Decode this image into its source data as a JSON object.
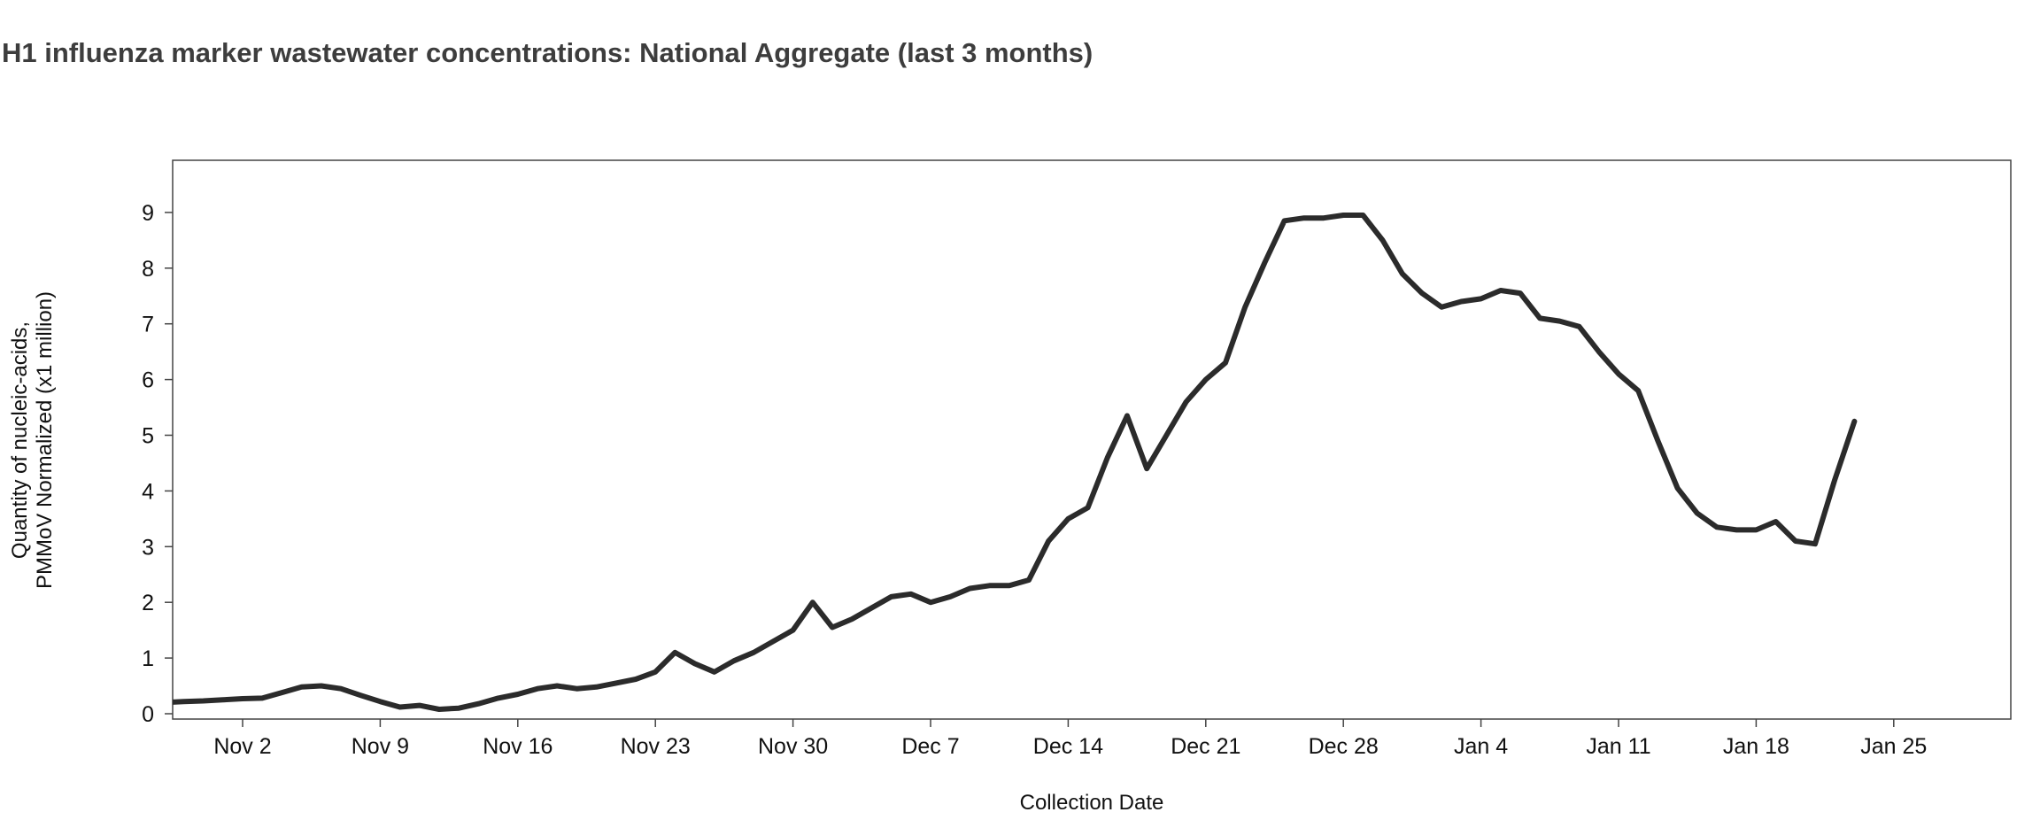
{
  "page": {
    "background": "#ffffff"
  },
  "chart_data": {
    "type": "line",
    "title": "H1 influenza marker wastewater concentrations: National Aggregate (last 3 months)",
    "xlabel": "Collection Date",
    "ylabel_lines": [
      "Quantity of nucleic-acids,",
      "PMMoV Normalized (x1 million)"
    ],
    "ylim": [
      0,
      9.95
    ],
    "y_ticks": [
      0,
      1,
      2,
      3,
      4,
      5,
      6,
      7,
      8,
      9
    ],
    "x_ticks": [
      {
        "label": "Nov 2",
        "day": 1
      },
      {
        "label": "Nov 9",
        "day": 8
      },
      {
        "label": "Nov 16",
        "day": 15
      },
      {
        "label": "Nov 23",
        "day": 22
      },
      {
        "label": "Nov 30",
        "day": 29
      },
      {
        "label": "Dec 7",
        "day": 36
      },
      {
        "label": "Dec 14",
        "day": 43
      },
      {
        "label": "Dec 21",
        "day": 50
      },
      {
        "label": "Dec 28",
        "day": 57
      },
      {
        "label": "Jan 4",
        "day": 64
      },
      {
        "label": "Jan 11",
        "day": 71
      },
      {
        "label": "Jan 18",
        "day": 78
      },
      {
        "label": "Jan 25",
        "day": 85
      }
    ],
    "grid": false,
    "legend": "none",
    "line_color": "#2b2b2b",
    "axis_color": "#444444",
    "title_color": "#3d3d3d",
    "points": [
      {
        "date": "Oct 29",
        "day": -3,
        "value": 0.2
      },
      {
        "date": "Oct 30",
        "day": -2,
        "value": 0.22
      },
      {
        "date": "Oct 31",
        "day": -1,
        "value": 0.23
      },
      {
        "date": "Nov 1",
        "day": 0,
        "value": 0.25
      },
      {
        "date": "Nov 2",
        "day": 1,
        "value": 0.27
      },
      {
        "date": "Nov 3",
        "day": 2,
        "value": 0.28
      },
      {
        "date": "Nov 4",
        "day": 3,
        "value": 0.38
      },
      {
        "date": "Nov 5",
        "day": 4,
        "value": 0.48
      },
      {
        "date": "Nov 6",
        "day": 5,
        "value": 0.5
      },
      {
        "date": "Nov 7",
        "day": 6,
        "value": 0.45
      },
      {
        "date": "Nov 8",
        "day": 7,
        "value": 0.33
      },
      {
        "date": "Nov 9",
        "day": 8,
        "value": 0.22
      },
      {
        "date": "Nov 10",
        "day": 9,
        "value": 0.12
      },
      {
        "date": "Nov 11",
        "day": 10,
        "value": 0.15
      },
      {
        "date": "Nov 12",
        "day": 11,
        "value": 0.08
      },
      {
        "date": "Nov 13",
        "day": 12,
        "value": 0.1
      },
      {
        "date": "Nov 14",
        "day": 13,
        "value": 0.18
      },
      {
        "date": "Nov 15",
        "day": 14,
        "value": 0.28
      },
      {
        "date": "Nov 16",
        "day": 15,
        "value": 0.35
      },
      {
        "date": "Nov 17",
        "day": 16,
        "value": 0.45
      },
      {
        "date": "Nov 18",
        "day": 17,
        "value": 0.5
      },
      {
        "date": "Nov 19",
        "day": 18,
        "value": 0.45
      },
      {
        "date": "Nov 20",
        "day": 19,
        "value": 0.48
      },
      {
        "date": "Nov 21",
        "day": 20,
        "value": 0.55
      },
      {
        "date": "Nov 22",
        "day": 21,
        "value": 0.62
      },
      {
        "date": "Nov 23",
        "day": 22,
        "value": 0.75
      },
      {
        "date": "Nov 24",
        "day": 23,
        "value": 1.1
      },
      {
        "date": "Nov 25",
        "day": 24,
        "value": 0.9
      },
      {
        "date": "Nov 26",
        "day": 25,
        "value": 0.75
      },
      {
        "date": "Nov 27",
        "day": 26,
        "value": 0.95
      },
      {
        "date": "Nov 28",
        "day": 27,
        "value": 1.1
      },
      {
        "date": "Nov 29",
        "day": 28,
        "value": 1.3
      },
      {
        "date": "Nov 30",
        "day": 29,
        "value": 1.5
      },
      {
        "date": "Dec 1",
        "day": 30,
        "value": 2.0
      },
      {
        "date": "Dec 2",
        "day": 31,
        "value": 1.55
      },
      {
        "date": "Dec 3",
        "day": 32,
        "value": 1.7
      },
      {
        "date": "Dec 4",
        "day": 33,
        "value": 1.9
      },
      {
        "date": "Dec 5",
        "day": 34,
        "value": 2.1
      },
      {
        "date": "Dec 6",
        "day": 35,
        "value": 2.15
      },
      {
        "date": "Dec 7",
        "day": 36,
        "value": 2.0
      },
      {
        "date": "Dec 8",
        "day": 37,
        "value": 2.1
      },
      {
        "date": "Dec 9",
        "day": 38,
        "value": 2.25
      },
      {
        "date": "Dec 10",
        "day": 39,
        "value": 2.3
      },
      {
        "date": "Dec 11",
        "day": 40,
        "value": 2.3
      },
      {
        "date": "Dec 12",
        "day": 41,
        "value": 2.4
      },
      {
        "date": "Dec 13",
        "day": 42,
        "value": 3.1
      },
      {
        "date": "Dec 14",
        "day": 43,
        "value": 3.5
      },
      {
        "date": "Dec 15",
        "day": 44,
        "value": 3.7
      },
      {
        "date": "Dec 16",
        "day": 45,
        "value": 4.6
      },
      {
        "date": "Dec 17",
        "day": 46,
        "value": 5.35
      },
      {
        "date": "Dec 18",
        "day": 47,
        "value": 4.4
      },
      {
        "date": "Dec 19",
        "day": 48,
        "value": 5.0
      },
      {
        "date": "Dec 20",
        "day": 49,
        "value": 5.6
      },
      {
        "date": "Dec 21",
        "day": 50,
        "value": 6.0
      },
      {
        "date": "Dec 22",
        "day": 51,
        "value": 6.3
      },
      {
        "date": "Dec 23",
        "day": 52,
        "value": 7.3
      },
      {
        "date": "Dec 24",
        "day": 53,
        "value": 8.1
      },
      {
        "date": "Dec 25",
        "day": 54,
        "value": 8.85
      },
      {
        "date": "Dec 26",
        "day": 55,
        "value": 8.9
      },
      {
        "date": "Dec 27",
        "day": 56,
        "value": 8.9
      },
      {
        "date": "Dec 28",
        "day": 57,
        "value": 8.95
      },
      {
        "date": "Dec 29",
        "day": 58,
        "value": 8.95
      },
      {
        "date": "Dec 30",
        "day": 59,
        "value": 8.5
      },
      {
        "date": "Dec 31",
        "day": 60,
        "value": 7.9
      },
      {
        "date": "Jan 1",
        "day": 61,
        "value": 7.55
      },
      {
        "date": "Jan 2",
        "day": 62,
        "value": 7.3
      },
      {
        "date": "Jan 3",
        "day": 63,
        "value": 7.4
      },
      {
        "date": "Jan 4",
        "day": 64,
        "value": 7.45
      },
      {
        "date": "Jan 5",
        "day": 65,
        "value": 7.6
      },
      {
        "date": "Jan 6",
        "day": 66,
        "value": 7.55
      },
      {
        "date": "Jan 7",
        "day": 67,
        "value": 7.1
      },
      {
        "date": "Jan 8",
        "day": 68,
        "value": 7.05
      },
      {
        "date": "Jan 9",
        "day": 69,
        "value": 6.95
      },
      {
        "date": "Jan 10",
        "day": 70,
        "value": 6.5
      },
      {
        "date": "Jan 11",
        "day": 71,
        "value": 6.1
      },
      {
        "date": "Jan 12",
        "day": 72,
        "value": 5.8
      },
      {
        "date": "Jan 13",
        "day": 73,
        "value": 4.9
      },
      {
        "date": "Jan 14",
        "day": 74,
        "value": 4.05
      },
      {
        "date": "Jan 15",
        "day": 75,
        "value": 3.6
      },
      {
        "date": "Jan 16",
        "day": 76,
        "value": 3.35
      },
      {
        "date": "Jan 17",
        "day": 77,
        "value": 3.3
      },
      {
        "date": "Jan 18",
        "day": 78,
        "value": 3.3
      },
      {
        "date": "Jan 19",
        "day": 79,
        "value": 3.45
      },
      {
        "date": "Jan 20",
        "day": 80,
        "value": 3.1
      },
      {
        "date": "Jan 21",
        "day": 81,
        "value": 3.05
      },
      {
        "date": "Jan 22",
        "day": 82,
        "value": 4.2
      },
      {
        "date": "Jan 23",
        "day": 83,
        "value": 5.25
      }
    ]
  }
}
